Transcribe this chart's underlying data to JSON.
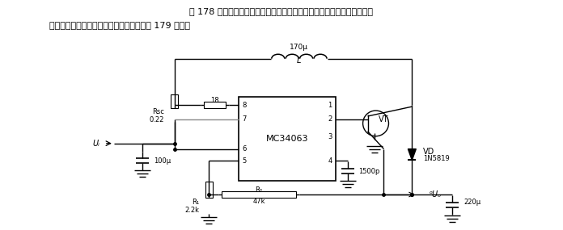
{
  "header1": "图 178 所示电路的输出电压虽高，但输出电流却很小。当需要输出大电流",
  "header2": "时，则可通过外接晶体管来实现，电路如图 179 所示。",
  "ic_label": "MC34063",
  "inductor_label": "170μ",
  "inductor_sym": "L",
  "r18_label": "18",
  "rsc_label": "Rsc",
  "rsc_val": "0.22",
  "ui_label": "Uᵢ",
  "cap100_label": "100μ",
  "cap1500_label": "1500p",
  "cap220_label": "220μ",
  "vd_label": "VD",
  "vd_part": "1N5819",
  "vt_label": "VT",
  "r2_label": "R₂",
  "r2_val": "47k",
  "r1_label": "R₁",
  "r1_val": "2.2k",
  "uo_label": "ᵒUₒ",
  "bg_color": "#ffffff",
  "lc": "#000000",
  "tc": "#000000",
  "pin_left": [
    "8",
    "7",
    "6",
    "5"
  ],
  "pin_right": [
    "1",
    "2",
    "3",
    "4"
  ],
  "fig_w": 6.96,
  "fig_h": 2.85
}
